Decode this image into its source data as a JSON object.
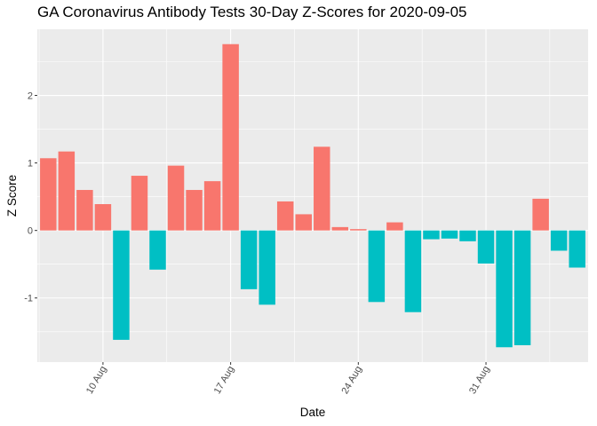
{
  "chart_data": {
    "type": "bar",
    "title": "GA Coronavirus Antibody Tests 30-Day Z-Scores for 2020-09-05",
    "xlabel": "Date",
    "ylabel": "Z Score",
    "x_start_date": "2020-08-07",
    "x": [
      "2020-08-07",
      "2020-08-08",
      "2020-08-09",
      "2020-08-10",
      "2020-08-11",
      "2020-08-12",
      "2020-08-13",
      "2020-08-14",
      "2020-08-15",
      "2020-08-16",
      "2020-08-17",
      "2020-08-18",
      "2020-08-19",
      "2020-08-20",
      "2020-08-21",
      "2020-08-22",
      "2020-08-23",
      "2020-08-24",
      "2020-08-25",
      "2020-08-26",
      "2020-08-27",
      "2020-08-28",
      "2020-08-29",
      "2020-08-30",
      "2020-08-31",
      "2020-09-01",
      "2020-09-02",
      "2020-09-03",
      "2020-09-04",
      "2020-09-05"
    ],
    "values": [
      1.07,
      1.17,
      0.6,
      0.39,
      -1.62,
      0.81,
      -0.58,
      0.96,
      0.6,
      0.73,
      2.76,
      -0.87,
      -1.1,
      0.43,
      0.24,
      1.24,
      0.05,
      0.02,
      -1.06,
      0.12,
      -1.21,
      -0.13,
      -0.12,
      -0.16,
      -0.49,
      -1.73,
      -1.7,
      0.47,
      -0.3,
      -0.55
    ],
    "positive_color": "#F8766D",
    "negative_color": "#00BFC4",
    "panel_color": "#EBEBEB",
    "x_ticks": [
      {
        "label": "10 Aug",
        "date": "2020-08-10"
      },
      {
        "label": "17 Aug",
        "date": "2020-08-17"
      },
      {
        "label": "24 Aug",
        "date": "2020-08-24"
      },
      {
        "label": "31 Aug",
        "date": "2020-08-31"
      }
    ],
    "y_ticks": [
      -1,
      0,
      1,
      2
    ],
    "ylim": [
      -1.95,
      2.98
    ],
    "grid": true,
    "legend": "none"
  }
}
